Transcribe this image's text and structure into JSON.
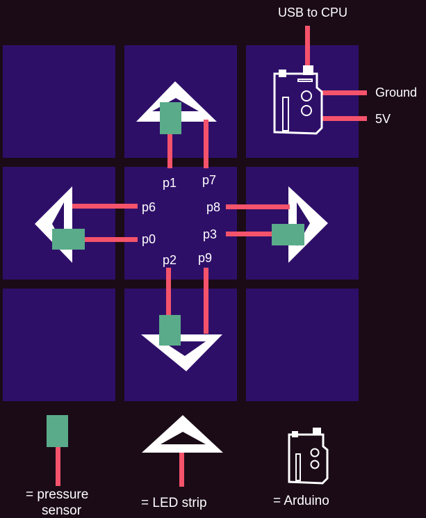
{
  "colors": {
    "background": "#1a0b17",
    "tile": "#2e0f68",
    "wire": "#f4536b",
    "sensor": "#5aab8a",
    "arrow": "#ffffff",
    "text": "#ffffff"
  },
  "labels": {
    "usb": "USB to CPU",
    "ground": "Ground",
    "five_v": "5V",
    "p1": "p1",
    "p7": "p7",
    "p6": "p6",
    "p0": "p0",
    "p8": "p8",
    "p3": "p3",
    "p2": "p2",
    "p9": "p9"
  },
  "legend": {
    "sensor_line1": "= pressure",
    "sensor_line2": "sensor",
    "led": "= LED strip",
    "arduino": "= Arduino"
  }
}
